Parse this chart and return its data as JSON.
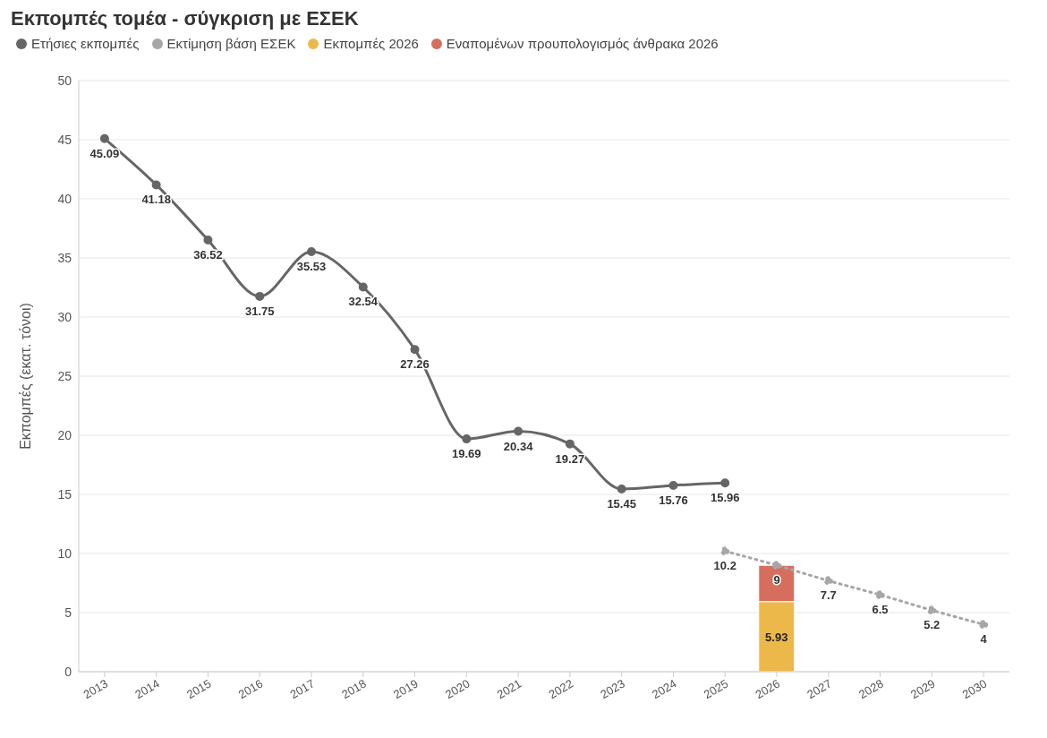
{
  "chart_data": {
    "type": "line",
    "title": "Εκπομπές τομέα - σύγκριση με ΕΣΕΚ",
    "ylabel": "Εκπομπές (εκατ. τόνοι)",
    "categories": [
      "2013",
      "2014",
      "2015",
      "2016",
      "2017",
      "2018",
      "2019",
      "2020",
      "2021",
      "2022",
      "2023",
      "2024",
      "2025",
      "2026",
      "2027",
      "2028",
      "2029",
      "2030"
    ],
    "series": [
      {
        "name": "Ετήσιες εκπομπές",
        "color": "#666666",
        "line_style": "solid",
        "values": [
          45.09,
          41.18,
          36.52,
          31.75,
          35.53,
          32.54,
          27.26,
          19.69,
          20.34,
          19.27,
          15.45,
          15.76,
          15.96,
          null,
          null,
          null,
          null,
          null
        ],
        "value_labels": [
          "45.09",
          "41.18",
          "36.52",
          "31.75",
          "35.53",
          "32.54",
          "27.26",
          "19.69",
          "20.34",
          "19.27",
          "15.45",
          "15.76",
          "15.96",
          null,
          null,
          null,
          null,
          null
        ]
      },
      {
        "name": "Εκτίμηση βάση ΕΣΕΚ",
        "color": "#a6a6a6",
        "line_style": "dotted",
        "values": [
          null,
          null,
          null,
          null,
          null,
          null,
          null,
          null,
          null,
          null,
          null,
          null,
          10.2,
          9,
          7.7,
          6.5,
          5.2,
          4
        ],
        "value_labels": [
          null,
          null,
          null,
          null,
          null,
          null,
          null,
          null,
          null,
          null,
          null,
          null,
          "10.2",
          "9",
          "7.7",
          "6.5",
          "5.2",
          "4"
        ]
      },
      {
        "name": "Εκπομπές 2026",
        "type": "bar",
        "color": "#ecb84a",
        "values": [
          null,
          null,
          null,
          null,
          null,
          null,
          null,
          null,
          null,
          null,
          null,
          null,
          null,
          5.93,
          null,
          null,
          null,
          null
        ],
        "value_labels": [
          null,
          null,
          null,
          null,
          null,
          null,
          null,
          null,
          null,
          null,
          null,
          null,
          null,
          "5.93",
          null,
          null,
          null,
          null
        ]
      },
      {
        "name": "Εναπομένων προυπολογισμός άνθρακα 2026",
        "type": "bar",
        "color": "#d66e5e",
        "values": [
          null,
          null,
          null,
          null,
          null,
          null,
          null,
          null,
          null,
          null,
          null,
          null,
          null,
          3.07,
          null,
          null,
          null,
          null
        ]
      }
    ],
    "stacked": true,
    "ylim": [
      0,
      50
    ],
    "yticks": [
      0,
      5,
      10,
      15,
      20,
      25,
      30,
      35,
      40,
      45,
      50
    ],
    "grid": "y",
    "legend": "top left",
    "marker": "circle"
  }
}
